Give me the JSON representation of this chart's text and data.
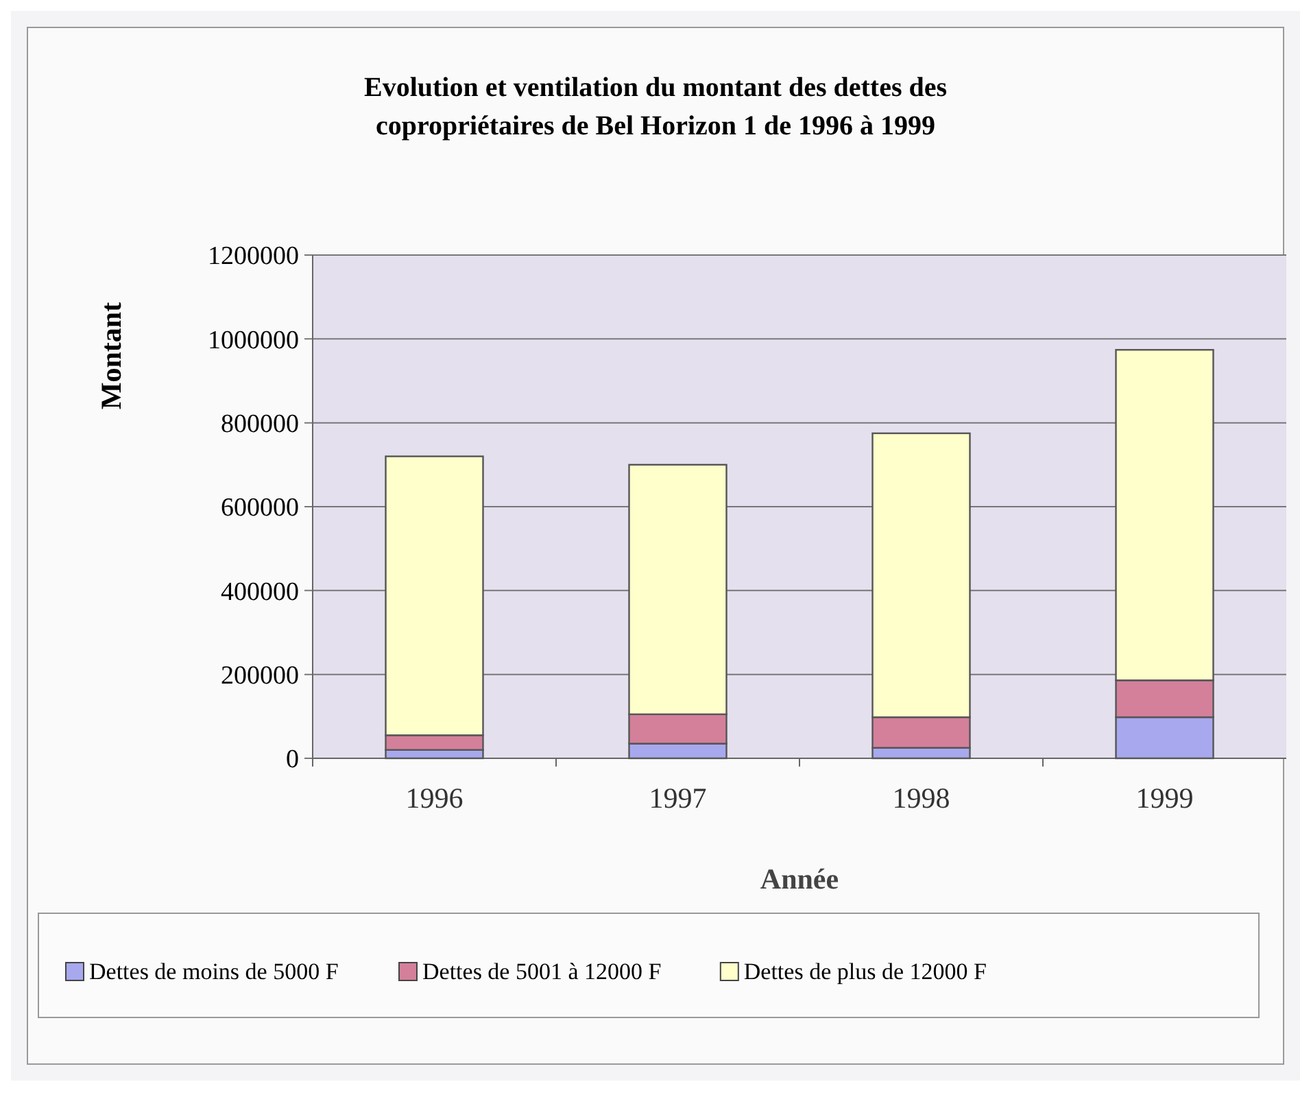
{
  "chart_data": {
    "type": "bar",
    "title": "Evolution et ventilation du montant des dettes des copropriétaires de Bel Horizon 1 de 1996 à 1999",
    "xlabel": "Année",
    "ylabel": "Montant",
    "categories": [
      "1996",
      "1997",
      "1998",
      "1999"
    ],
    "stacked": true,
    "series": [
      {
        "name": "Dettes de moins de 5000 F",
        "color": "#a8a8ee",
        "values": [
          20000,
          35000,
          25000,
          98000
        ]
      },
      {
        "name": "Dettes de 5001 à 12000 F",
        "color": "#d4809a",
        "values": [
          35000,
          70000,
          73000,
          88000
        ]
      },
      {
        "name": "Dettes de plus de 12000 F",
        "color": "#ffffcc",
        "values": [
          665000,
          595000,
          677000,
          788000
        ]
      }
    ],
    "ylim": [
      0,
      1200000
    ],
    "yticks": [
      0,
      200000,
      400000,
      600000,
      800000,
      1000000,
      1200000
    ],
    "grid": "y",
    "legend": "bottom"
  }
}
